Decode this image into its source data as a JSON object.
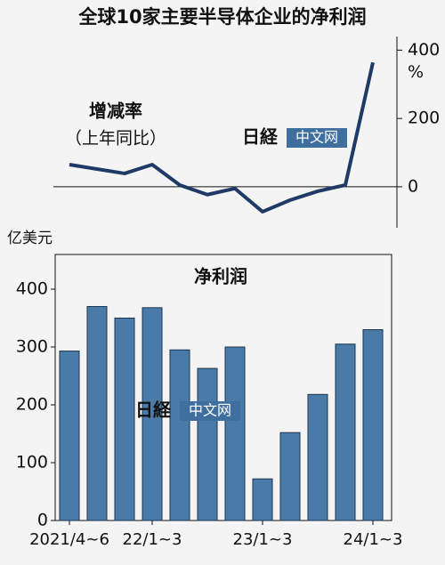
{
  "title": "全球10家主要半导体企业的净利润",
  "watermark": {
    "logo": "日経",
    "text": "中文网"
  },
  "chart_data": [
    {
      "type": "line",
      "title": "增减率",
      "subtitle": "（上年同比）",
      "y_unit": "%",
      "series": [
        {
          "name": "增减率",
          "color": "#1f3a66",
          "values": [
            65,
            52,
            39,
            65,
            5,
            -23,
            -5,
            -73,
            -39,
            -13,
            5,
            364
          ]
        }
      ],
      "ylim": [
        -120,
        440
      ],
      "yticks": [
        0,
        200,
        400
      ],
      "axis_side": "right"
    },
    {
      "type": "bar",
      "title": "净利润",
      "y_label": "亿美元",
      "categories": [
        "2021/4~6",
        null,
        null,
        "22/1~3",
        null,
        null,
        null,
        "23/1~3",
        null,
        null,
        null,
        "24/1~3"
      ],
      "values": [
        293,
        370,
        350,
        368,
        295,
        263,
        300,
        72,
        152,
        218,
        305,
        330
      ],
      "color": "#4a7aa8",
      "ylim": [
        0,
        460
      ],
      "yticks": [
        0,
        100,
        200,
        300,
        400
      ],
      "axis_side": "left"
    }
  ]
}
